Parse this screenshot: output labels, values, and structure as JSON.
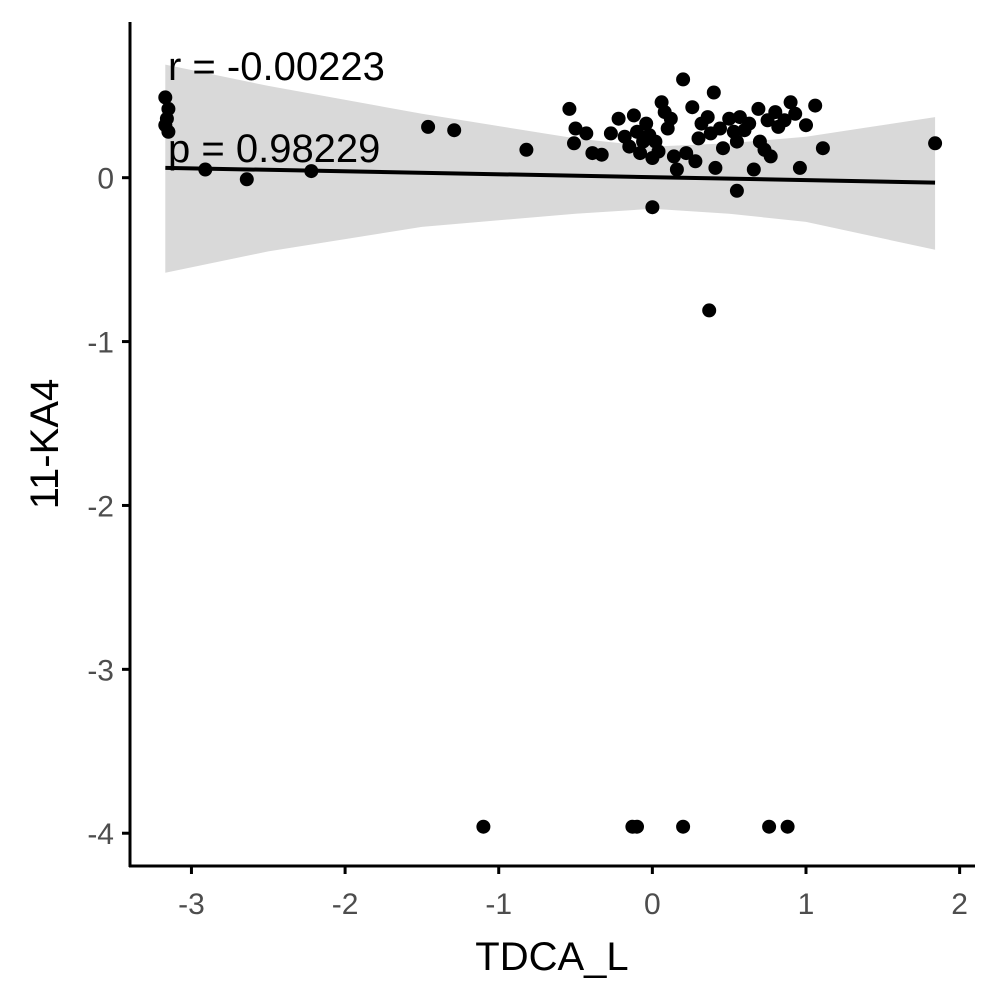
{
  "chart_data": {
    "type": "scatter",
    "xlabel": "TDCA_L",
    "ylabel": "11-KA4",
    "xlim": [
      -3.4,
      2.1
    ],
    "ylim": [
      -4.2,
      0.95
    ],
    "x_ticks": [
      -3,
      -2,
      -1,
      0,
      1,
      2
    ],
    "y_ticks": [
      0,
      -1,
      -2,
      -3,
      -4
    ],
    "grid": false,
    "legend": "none",
    "annotations": {
      "r_text": "r = -0.00223",
      "p_text": "p = 0.98229"
    },
    "regression": {
      "x": [
        -3.17,
        1.84
      ],
      "y": [
        0.06,
        -0.03
      ]
    },
    "confidence_band": {
      "x": [
        -3.17,
        -2.5,
        -1.5,
        -0.5,
        0.0,
        0.5,
        1.0,
        1.84
      ],
      "upper": [
        0.69,
        0.56,
        0.39,
        0.24,
        0.19,
        0.21,
        0.25,
        0.37
      ],
      "lower": [
        -0.58,
        -0.45,
        -0.3,
        -0.22,
        -0.19,
        -0.22,
        -0.27,
        -0.44
      ]
    },
    "points": [
      {
        "x": -3.17,
        "y": 0.49
      },
      {
        "x": -3.15,
        "y": 0.42
      },
      {
        "x": -3.16,
        "y": 0.36
      },
      {
        "x": -3.17,
        "y": 0.32
      },
      {
        "x": -3.15,
        "y": 0.28
      },
      {
        "x": -2.91,
        "y": 0.05
      },
      {
        "x": -2.64,
        "y": -0.01
      },
      {
        "x": -2.22,
        "y": 0.04
      },
      {
        "x": -1.46,
        "y": 0.31
      },
      {
        "x": -1.29,
        "y": 0.29
      },
      {
        "x": -0.82,
        "y": 0.17
      },
      {
        "x": -0.54,
        "y": 0.42
      },
      {
        "x": -0.5,
        "y": 0.3
      },
      {
        "x": -0.51,
        "y": 0.21
      },
      {
        "x": -0.43,
        "y": 0.27
      },
      {
        "x": -0.39,
        "y": 0.15
      },
      {
        "x": -0.33,
        "y": 0.14
      },
      {
        "x": -0.27,
        "y": 0.27
      },
      {
        "x": -0.22,
        "y": 0.36
      },
      {
        "x": -0.18,
        "y": 0.25
      },
      {
        "x": -0.15,
        "y": 0.19
      },
      {
        "x": -0.12,
        "y": 0.38
      },
      {
        "x": -0.1,
        "y": 0.28
      },
      {
        "x": -0.08,
        "y": 0.15
      },
      {
        "x": -0.06,
        "y": 0.22
      },
      {
        "x": -0.04,
        "y": 0.33
      },
      {
        "x": -0.02,
        "y": 0.26
      },
      {
        "x": 0.0,
        "y": 0.12
      },
      {
        "x": 0.02,
        "y": 0.22
      },
      {
        "x": 0.04,
        "y": 0.16
      },
      {
        "x": 0.06,
        "y": 0.46
      },
      {
        "x": 0.08,
        "y": 0.4
      },
      {
        "x": 0.1,
        "y": 0.3
      },
      {
        "x": 0.12,
        "y": 0.36
      },
      {
        "x": 0.14,
        "y": 0.13
      },
      {
        "x": 0.16,
        "y": 0.05
      },
      {
        "x": 0.2,
        "y": 0.6
      },
      {
        "x": 0.22,
        "y": 0.15
      },
      {
        "x": 0.26,
        "y": 0.43
      },
      {
        "x": 0.28,
        "y": 0.1
      },
      {
        "x": 0.3,
        "y": 0.24
      },
      {
        "x": 0.32,
        "y": 0.33
      },
      {
        "x": 0.36,
        "y": 0.37
      },
      {
        "x": 0.38,
        "y": 0.27
      },
      {
        "x": 0.4,
        "y": 0.52
      },
      {
        "x": 0.41,
        "y": 0.06
      },
      {
        "x": 0.44,
        "y": 0.3
      },
      {
        "x": 0.46,
        "y": 0.18
      },
      {
        "x": 0.5,
        "y": 0.36
      },
      {
        "x": 0.53,
        "y": 0.28
      },
      {
        "x": 0.55,
        "y": 0.22
      },
      {
        "x": 0.57,
        "y": 0.37
      },
      {
        "x": 0.6,
        "y": 0.29
      },
      {
        "x": 0.63,
        "y": 0.33
      },
      {
        "x": 0.66,
        "y": 0.05
      },
      {
        "x": 0.69,
        "y": 0.42
      },
      {
        "x": 0.7,
        "y": 0.22
      },
      {
        "x": 0.73,
        "y": 0.17
      },
      {
        "x": 0.75,
        "y": 0.35
      },
      {
        "x": 0.77,
        "y": 0.13
      },
      {
        "x": 0.8,
        "y": 0.4
      },
      {
        "x": 0.82,
        "y": 0.31
      },
      {
        "x": 0.86,
        "y": 0.35
      },
      {
        "x": 0.9,
        "y": 0.46
      },
      {
        "x": 0.93,
        "y": 0.39
      },
      {
        "x": 0.96,
        "y": 0.06
      },
      {
        "x": 1.0,
        "y": 0.32
      },
      {
        "x": 1.06,
        "y": 0.44
      },
      {
        "x": 1.11,
        "y": 0.18
      },
      {
        "x": 1.84,
        "y": 0.21
      },
      {
        "x": 0.55,
        "y": -0.08
      },
      {
        "x": 0.0,
        "y": -0.18
      },
      {
        "x": 0.37,
        "y": -0.81
      },
      {
        "x": -1.1,
        "y": -3.96
      },
      {
        "x": -0.13,
        "y": -3.96
      },
      {
        "x": -0.1,
        "y": -3.96
      },
      {
        "x": 0.2,
        "y": -3.96
      },
      {
        "x": 0.76,
        "y": -3.96
      },
      {
        "x": 0.88,
        "y": -3.96
      }
    ],
    "colors": {
      "points": "#000000",
      "line": "#000000",
      "band": "#d9d9d9",
      "axis": "#000000",
      "tick_text": "#4d4d4d"
    }
  }
}
